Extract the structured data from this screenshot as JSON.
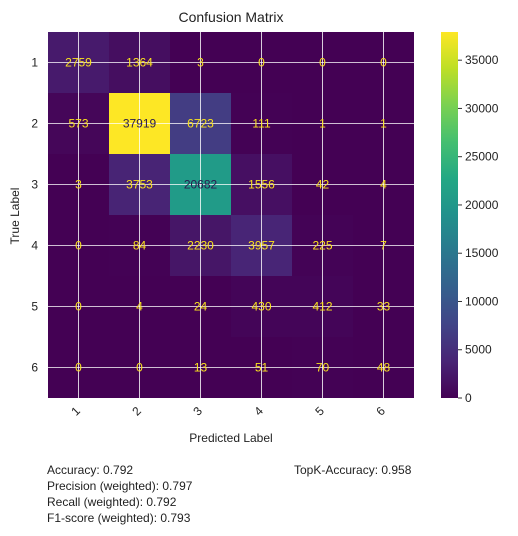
{
  "chart_data": {
    "type": "heatmap",
    "title": "Confusion Matrix",
    "xlabel": "Predicted Label",
    "ylabel": "True Label",
    "x_tick_labels": [
      "1",
      "2",
      "3",
      "4",
      "5",
      "6"
    ],
    "y_tick_labels": [
      "1",
      "2",
      "3",
      "4",
      "5",
      "6"
    ],
    "matrix": [
      [
        2759,
        1364,
        3,
        0,
        0,
        0
      ],
      [
        573,
        37919,
        6723,
        111,
        1,
        1
      ],
      [
        3,
        3753,
        20682,
        1556,
        42,
        4
      ],
      [
        0,
        84,
        2230,
        3957,
        225,
        7
      ],
      [
        0,
        4,
        24,
        430,
        412,
        33
      ],
      [
        0,
        0,
        13,
        51,
        70,
        48
      ]
    ],
    "colormap": "viridis",
    "color_range": [
      0,
      37919
    ],
    "colorbar_ticks": [
      0,
      5000,
      10000,
      15000,
      20000,
      25000,
      30000,
      35000
    ],
    "colorbar_tick_labels": [
      "0",
      "5000",
      "10000",
      "15000",
      "20000",
      "25000",
      "30000",
      "35000"
    ],
    "grid": true
  },
  "metrics": {
    "accuracy": "Accuracy: 0.792",
    "precision": "Precision (weighted): 0.797",
    "recall": "Recall (weighted): 0.792",
    "f1": "F1-score (weighted): 0.793",
    "topk": "TopK-Accuracy: 0.958"
  },
  "colors": {
    "text_on_dark": "#f9e21d",
    "text_on_light": "#2a1b4f",
    "grid": "#ffffff",
    "axis_text": "#222222"
  }
}
